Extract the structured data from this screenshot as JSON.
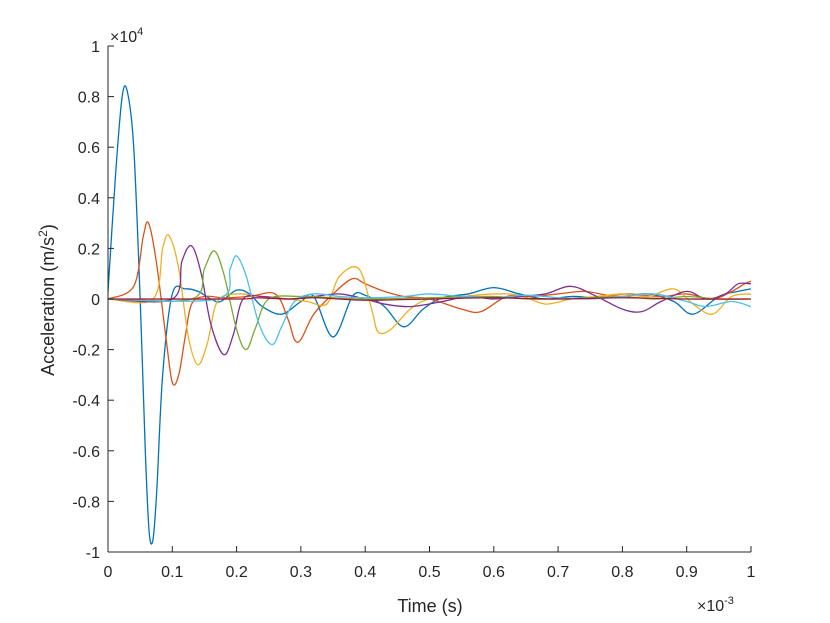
{
  "chart_data": {
    "type": "line",
    "title": "",
    "xlabel": "Time (s)",
    "ylabel_main": "Acceleration (m/s",
    "ylabel_sup": "2",
    "ylabel_end": ")",
    "xlim": [
      0,
      1
    ],
    "ylim": [
      -1,
      1
    ],
    "x_multiplier": {
      "base": "×10",
      "exp": "-3"
    },
    "y_multiplier": {
      "base": "×10",
      "exp": "4"
    },
    "x_ticks": [
      {
        "v": 0,
        "label": "0"
      },
      {
        "v": 0.1,
        "label": "0.1"
      },
      {
        "v": 0.2,
        "label": "0.2"
      },
      {
        "v": 0.3,
        "label": "0.3"
      },
      {
        "v": 0.4,
        "label": "0.4"
      },
      {
        "v": 0.5,
        "label": "0.5"
      },
      {
        "v": 0.6,
        "label": "0.6"
      },
      {
        "v": 0.7,
        "label": "0.7"
      },
      {
        "v": 0.8,
        "label": "0.8"
      },
      {
        "v": 0.9,
        "label": "0.9"
      },
      {
        "v": 1,
        "label": "1"
      }
    ],
    "y_ticks": [
      {
        "v": -1,
        "label": "-1"
      },
      {
        "v": -0.8,
        "label": "-0.8"
      },
      {
        "v": -0.6,
        "label": "-0.6"
      },
      {
        "v": -0.4,
        "label": "-0.4"
      },
      {
        "v": -0.2,
        "label": "-0.2"
      },
      {
        "v": 0,
        "label": "0"
      },
      {
        "v": 0.2,
        "label": "0.2"
      },
      {
        "v": 0.4,
        "label": "0.4"
      },
      {
        "v": 0.6,
        "label": "0.6"
      },
      {
        "v": 0.8,
        "label": "0.8"
      },
      {
        "v": 1,
        "label": "1"
      }
    ],
    "grid": false,
    "legend": "none",
    "series": [
      {
        "color": "#0072BD",
        "points": [
          [
            0,
            0.03
          ],
          [
            0.012,
            0.5
          ],
          [
            0.022,
            0.8
          ],
          [
            0.03,
            0.82
          ],
          [
            0.04,
            0.6
          ],
          [
            0.05,
            0
          ],
          [
            0.058,
            -0.6
          ],
          [
            0.064,
            -0.92
          ],
          [
            0.07,
            -0.95
          ],
          [
            0.076,
            -0.75
          ],
          [
            0.085,
            -0.3
          ],
          [
            0.1,
            0.02
          ],
          [
            0.12,
            0.04
          ],
          [
            0.14,
            0.03
          ],
          [
            0.16,
            0
          ],
          [
            0.175,
            -0.01
          ],
          [
            0.2,
            0.035
          ],
          [
            0.22,
            0.02
          ],
          [
            0.24,
            -0.03
          ],
          [
            0.27,
            -0.06
          ],
          [
            0.3,
            -0.01
          ],
          [
            0.32,
            0.01
          ],
          [
            0.35,
            -0.15
          ],
          [
            0.38,
            0.01
          ],
          [
            0.4,
            0.015
          ],
          [
            0.43,
            -0.03
          ],
          [
            0.46,
            -0.11
          ],
          [
            0.49,
            -0.04
          ],
          [
            0.52,
            0.005
          ],
          [
            0.56,
            0.02
          ],
          [
            0.6,
            0.045
          ],
          [
            0.64,
            0.02
          ],
          [
            0.68,
            0
          ],
          [
            0.72,
            0.01
          ],
          [
            0.76,
            0.005
          ],
          [
            0.8,
            0.01
          ],
          [
            0.84,
            0.02
          ],
          [
            0.88,
            -0.01
          ],
          [
            0.91,
            -0.06
          ],
          [
            0.95,
            0.01
          ],
          [
            0.98,
            0.03
          ],
          [
            1,
            0.04
          ]
        ]
      },
      {
        "color": "#D95319",
        "points": [
          [
            0,
            0
          ],
          [
            0.04,
            0.05
          ],
          [
            0.055,
            0.25
          ],
          [
            0.063,
            0.3
          ],
          [
            0.075,
            0.15
          ],
          [
            0.09,
            -0.15
          ],
          [
            0.1,
            -0.33
          ],
          [
            0.11,
            -0.3
          ],
          [
            0.12,
            -0.15
          ],
          [
            0.13,
            -0.02
          ],
          [
            0.15,
            0.01
          ],
          [
            0.18,
            0.005
          ],
          [
            0.22,
            0.01
          ],
          [
            0.26,
            0.02
          ],
          [
            0.28,
            -0.08
          ],
          [
            0.29,
            -0.16
          ],
          [
            0.3,
            -0.16
          ],
          [
            0.32,
            -0.06
          ],
          [
            0.35,
            0.02
          ],
          [
            0.38,
            0.08
          ],
          [
            0.4,
            0.06
          ],
          [
            0.43,
            0.03
          ],
          [
            0.46,
            0.01
          ],
          [
            0.5,
            0
          ],
          [
            0.55,
            -0.04
          ],
          [
            0.58,
            -0.05
          ],
          [
            0.62,
            0.01
          ],
          [
            0.66,
            0.01
          ],
          [
            0.7,
            0.02
          ],
          [
            0.74,
            0.03
          ],
          [
            0.78,
            0.015
          ],
          [
            0.81,
            0.02
          ],
          [
            0.86,
            0.01
          ],
          [
            0.9,
            0.02
          ],
          [
            0.94,
            0
          ],
          [
            0.97,
            0.03
          ],
          [
            0.99,
            0.06
          ],
          [
            1,
            0.07
          ]
        ]
      },
      {
        "color": "#EDB120",
        "points": [
          [
            0,
            0
          ],
          [
            0.07,
            0
          ],
          [
            0.085,
            0.2
          ],
          [
            0.095,
            0.25
          ],
          [
            0.11,
            0.12
          ],
          [
            0.125,
            -0.15
          ],
          [
            0.14,
            -0.26
          ],
          [
            0.155,
            -0.17
          ],
          [
            0.17,
            -0.01
          ],
          [
            0.2,
            0.02
          ],
          [
            0.24,
            0.01
          ],
          [
            0.28,
            0
          ],
          [
            0.31,
            -0.01
          ],
          [
            0.34,
            -0.02
          ],
          [
            0.36,
            0.09
          ],
          [
            0.39,
            0.12
          ],
          [
            0.41,
            -0.04
          ],
          [
            0.42,
            -0.13
          ],
          [
            0.44,
            -0.12
          ],
          [
            0.47,
            -0.04
          ],
          [
            0.5,
            0
          ],
          [
            0.55,
            0.01
          ],
          [
            0.6,
            0.02
          ],
          [
            0.64,
            0.015
          ],
          [
            0.68,
            -0.02
          ],
          [
            0.72,
            0
          ],
          [
            0.76,
            0.01
          ],
          [
            0.8,
            0.02
          ],
          [
            0.84,
            0.01
          ],
          [
            0.88,
            0.04
          ],
          [
            0.91,
            -0.02
          ],
          [
            0.94,
            -0.06
          ],
          [
            0.97,
            0.01
          ],
          [
            1,
            0.02
          ]
        ]
      },
      {
        "color": "#7E2F8E",
        "points": [
          [
            0,
            0
          ],
          [
            0.1,
            0
          ],
          [
            0.115,
            0.15
          ],
          [
            0.13,
            0.21
          ],
          [
            0.145,
            0.1
          ],
          [
            0.16,
            -0.1
          ],
          [
            0.18,
            -0.22
          ],
          [
            0.195,
            -0.14
          ],
          [
            0.21,
            0
          ],
          [
            0.24,
            0.01
          ],
          [
            0.28,
            0
          ],
          [
            0.32,
            0.01
          ],
          [
            0.36,
            0.02
          ],
          [
            0.4,
            0
          ],
          [
            0.43,
            -0.02
          ],
          [
            0.47,
            -0.03
          ],
          [
            0.52,
            -0.01
          ],
          [
            0.56,
            0.01
          ],
          [
            0.6,
            0
          ],
          [
            0.64,
            0.01
          ],
          [
            0.68,
            0.02
          ],
          [
            0.72,
            0.05
          ],
          [
            0.76,
            0.01
          ],
          [
            0.8,
            -0.04
          ],
          [
            0.83,
            -0.05
          ],
          [
            0.86,
            -0.01
          ],
          [
            0.9,
            0.03
          ],
          [
            0.93,
            0
          ],
          [
            0.96,
            0.02
          ],
          [
            0.98,
            0.06
          ],
          [
            1,
            0.06
          ]
        ]
      },
      {
        "color": "#77AC30",
        "points": [
          [
            0,
            0
          ],
          [
            0.13,
            0
          ],
          [
            0.15,
            0.12
          ],
          [
            0.165,
            0.19
          ],
          [
            0.18,
            0.1
          ],
          [
            0.2,
            -0.12
          ],
          [
            0.215,
            -0.2
          ],
          [
            0.23,
            -0.11
          ],
          [
            0.25,
            0
          ],
          [
            0.3,
            0.01
          ],
          [
            0.35,
            0.005
          ],
          [
            0.4,
            0
          ],
          [
            0.5,
            0.005
          ],
          [
            0.6,
            0.01
          ],
          [
            0.65,
            0
          ],
          [
            0.7,
            0
          ],
          [
            0.75,
            0.005
          ],
          [
            0.8,
            0.01
          ],
          [
            0.85,
            0
          ],
          [
            0.9,
            0.01
          ],
          [
            0.95,
            0
          ],
          [
            1,
            0
          ]
        ]
      },
      {
        "color": "#4DBEEE",
        "points": [
          [
            0,
            0
          ],
          [
            0.17,
            0
          ],
          [
            0.19,
            0.12
          ],
          [
            0.2,
            0.17
          ],
          [
            0.215,
            0.09
          ],
          [
            0.235,
            -0.1
          ],
          [
            0.255,
            -0.18
          ],
          [
            0.27,
            -0.11
          ],
          [
            0.29,
            -0.01
          ],
          [
            0.32,
            0.02
          ],
          [
            0.36,
            0.01
          ],
          [
            0.4,
            0.005
          ],
          [
            0.46,
            0.01
          ],
          [
            0.5,
            0.02
          ],
          [
            0.55,
            0.01
          ],
          [
            0.6,
            0.005
          ],
          [
            0.65,
            0.015
          ],
          [
            0.7,
            0.005
          ],
          [
            0.75,
            0
          ],
          [
            0.8,
            0.01
          ],
          [
            0.85,
            0.02
          ],
          [
            0.9,
            -0.01
          ],
          [
            0.93,
            -0.03
          ],
          [
            0.97,
            -0.01
          ],
          [
            1,
            -0.03
          ]
        ]
      },
      {
        "color": "#A2142F",
        "points": [
          [
            0,
            0
          ],
          [
            0.2,
            0
          ],
          [
            0.23,
            0.005
          ],
          [
            0.28,
            0
          ],
          [
            0.32,
            0.005
          ],
          [
            0.36,
            0
          ],
          [
            0.4,
            -0.005
          ],
          [
            0.5,
            0
          ],
          [
            0.6,
            0.005
          ],
          [
            0.7,
            0
          ],
          [
            0.8,
            0.005
          ],
          [
            0.9,
            0
          ],
          [
            1,
            0
          ]
        ]
      }
    ]
  }
}
